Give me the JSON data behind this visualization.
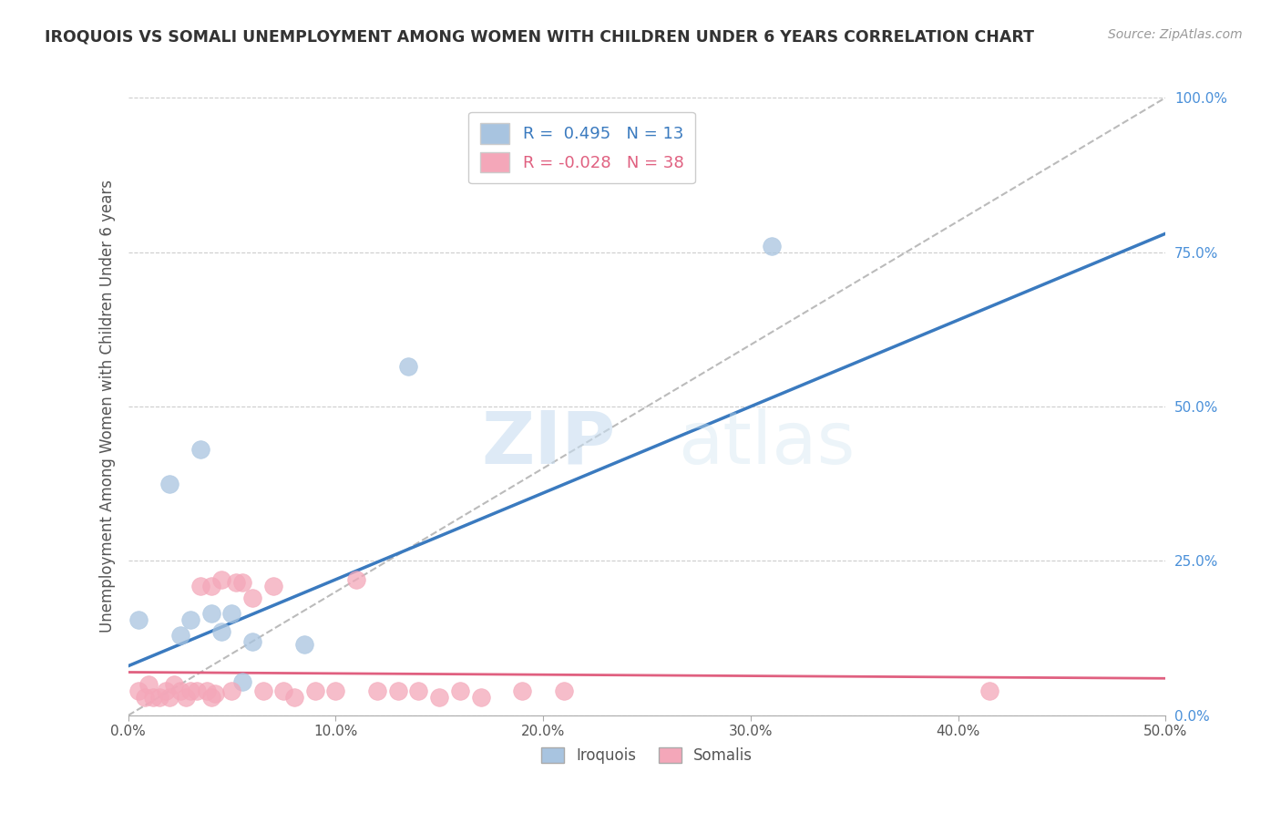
{
  "title": "IROQUOIS VS SOMALI UNEMPLOYMENT AMONG WOMEN WITH CHILDREN UNDER 6 YEARS CORRELATION CHART",
  "source": "Source: ZipAtlas.com",
  "xlabel": "",
  "ylabel": "Unemployment Among Women with Children Under 6 years",
  "xlim": [
    0.0,
    0.5
  ],
  "ylim": [
    0.0,
    1.0
  ],
  "xticks": [
    0.0,
    0.1,
    0.2,
    0.3,
    0.4,
    0.5
  ],
  "xticklabels": [
    "0.0%",
    "10.0%",
    "20.0%",
    "30.0%",
    "40.0%",
    "50.0%"
  ],
  "yticks": [
    0.0,
    0.25,
    0.5,
    0.75,
    1.0
  ],
  "yticklabels": [
    "0.0%",
    "25.0%",
    "50.0%",
    "75.0%",
    "100.0%"
  ],
  "iroquois_color": "#a8c4e0",
  "somali_color": "#f4a7b9",
  "iroquois_line_color": "#3a7abf",
  "somali_line_color": "#e06080",
  "diagonal_color": "#bbbbbb",
  "R_iroquois": 0.495,
  "N_iroquois": 13,
  "R_somali": -0.028,
  "N_somali": 38,
  "legend_label_iroquois": "Iroquois",
  "legend_label_somali": "Somalis",
  "watermark_zip": "ZIP",
  "watermark_atlas": "atlas",
  "iroquois_x": [
    0.005,
    0.02,
    0.025,
    0.03,
    0.035,
    0.04,
    0.045,
    0.05,
    0.055,
    0.06,
    0.085,
    0.135,
    0.31
  ],
  "iroquois_y": [
    0.155,
    0.375,
    0.13,
    0.155,
    0.43,
    0.165,
    0.135,
    0.165,
    0.055,
    0.12,
    0.115,
    0.565,
    0.76
  ],
  "somali_x": [
    0.005,
    0.008,
    0.01,
    0.012,
    0.015,
    0.018,
    0.02,
    0.022,
    0.025,
    0.028,
    0.03,
    0.033,
    0.035,
    0.038,
    0.04,
    0.042,
    0.045,
    0.05,
    0.052,
    0.055,
    0.06,
    0.065,
    0.07,
    0.075,
    0.08,
    0.09,
    0.1,
    0.11,
    0.12,
    0.13,
    0.14,
    0.15,
    0.16,
    0.17,
    0.19,
    0.21,
    0.415,
    0.04
  ],
  "somali_y": [
    0.04,
    0.03,
    0.05,
    0.03,
    0.03,
    0.04,
    0.03,
    0.05,
    0.04,
    0.03,
    0.04,
    0.04,
    0.21,
    0.04,
    0.21,
    0.035,
    0.22,
    0.04,
    0.215,
    0.215,
    0.19,
    0.04,
    0.21,
    0.04,
    0.03,
    0.04,
    0.04,
    0.22,
    0.04,
    0.04,
    0.04,
    0.03,
    0.04,
    0.03,
    0.04,
    0.04,
    0.04,
    0.03
  ],
  "iroquois_trend_x": [
    0.0,
    0.5
  ],
  "iroquois_trend_y": [
    0.08,
    0.78
  ],
  "somali_trend_x": [
    0.0,
    0.5
  ],
  "somali_trend_y": [
    0.07,
    0.06
  ]
}
